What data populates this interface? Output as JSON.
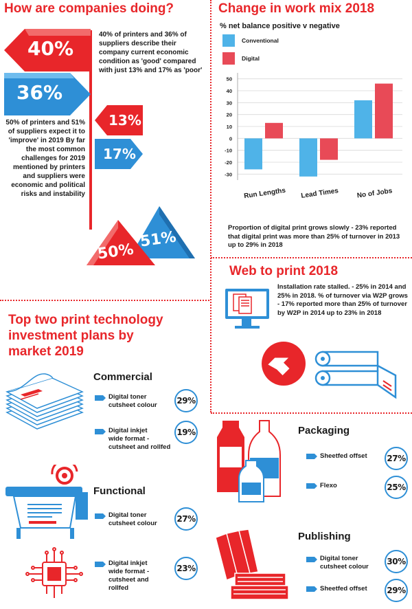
{
  "companies": {
    "title": "How are companies doing?",
    "arrow_values": [
      "40%",
      "36%",
      "13%",
      "17%",
      "50%",
      "51%"
    ],
    "text_condition": "40% of printers and 36% of suppliers describe their company current economic condition as 'good' compared with just 13% and 17% as 'poor'",
    "text_improve": "50% of printers and 51% of suppliers expect it to 'improve' in 2019 By far the most common challenges for 2019 mentioned by printers and suppliers were economic and political risks and instability"
  },
  "workmix": {
    "title": "Change in work mix 2018",
    "caption": "Proportion of digital print grows slowly - 23% reported that digital print was more than 25% of turnover in 2013 up to 29% in 2018"
  },
  "chart_data": {
    "type": "bar",
    "title": "% net balance positive v negative",
    "categories": [
      "Run Lengths",
      "Lead Times",
      "No of Jobs"
    ],
    "series": [
      {
        "name": "Conventional",
        "values": [
          -26,
          -32,
          32
        ]
      },
      {
        "name": "Digital",
        "values": [
          13,
          -18,
          46
        ]
      }
    ],
    "ylim": [
      -35,
      55
    ],
    "yticks": [
      50,
      40,
      30,
      20,
      10,
      0,
      -10,
      -20,
      -30
    ],
    "legend": "top-left",
    "grid": true,
    "colors": {
      "Conventional": "#4fb3e8",
      "Digital": "#e84a57"
    }
  },
  "w2p": {
    "title": "Web to print 2018",
    "text": "Installation rate stalled. - 25% in 2014 and 25% in 2018. % of turnover via W2P grows - 17% reported more than 25% of turnover by W2P in 2014 up to 23% in 2018"
  },
  "investment": {
    "title_lines": [
      "Top two print technology",
      "investment plans by",
      "market 2019"
    ],
    "commercial": {
      "title": "Commercial",
      "items": [
        {
          "label_lines": [
            "Digital toner",
            "cutsheet colour"
          ],
          "pct": "29%"
        },
        {
          "label_lines": [
            "Digital inkjet",
            "wide format -",
            "cutsheet and rollfed"
          ],
          "pct": "19%"
        }
      ]
    },
    "functional": {
      "title": "Functional",
      "items": [
        {
          "label_lines": [
            "Digital toner",
            "cutsheet colour"
          ],
          "pct": "27%"
        },
        {
          "label_lines": [
            "Digital inkjet",
            "wide format -",
            "cutsheet and",
            "rollfed"
          ],
          "pct": "23%"
        }
      ]
    },
    "packaging": {
      "title": "Packaging",
      "items": [
        {
          "label_lines": [
            "Sheetfed offset"
          ],
          "pct": "27%"
        },
        {
          "label_lines": [
            "Flexo"
          ],
          "pct": "25%"
        }
      ]
    },
    "publishing": {
      "title": "Publishing",
      "items": [
        {
          "label_lines": [
            "Digital toner",
            "cutsheet colour"
          ],
          "pct": "30%"
        },
        {
          "label_lines": [
            "Sheetfed offset"
          ],
          "pct": "29%"
        }
      ]
    }
  },
  "colors": {
    "red": "#e8262a",
    "blue": "#2e8fd6",
    "light_blue": "#4fb3e8"
  }
}
